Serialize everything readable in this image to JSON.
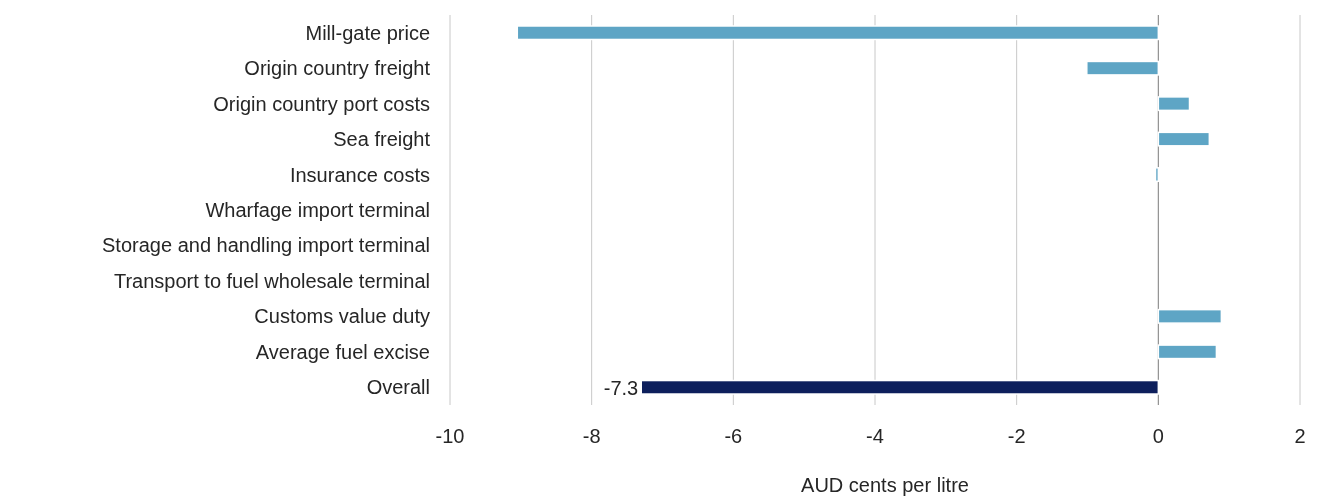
{
  "chart_data": {
    "type": "bar",
    "orientation": "horizontal",
    "xlabel": "AUD cents per litre",
    "categories": [
      "Mill-gate price",
      "Origin country freight",
      "Origin country port costs",
      "Sea freight",
      "Insurance costs",
      "Wharfage import terminal",
      "Storage and handling import terminal",
      "Transport to fuel wholesale terminal",
      "Customs value duty",
      "Average fuel excise",
      "Overall"
    ],
    "values": [
      -9.05,
      -1.01,
      0.44,
      0.72,
      -0.04,
      0,
      0,
      0,
      0.89,
      0.82,
      -7.3
    ],
    "colors": [
      "#5ea5c5",
      "#5ea5c5",
      "#5ea5c5",
      "#5ea5c5",
      "#5ea5c5",
      "#5ea5c5",
      "#5ea5c5",
      "#5ea5c5",
      "#5ea5c5",
      "#5ea5c5",
      "#0d1f5c"
    ],
    "value_labels": [
      null,
      null,
      null,
      null,
      null,
      null,
      null,
      null,
      null,
      null,
      "-7.3"
    ],
    "xlim": [
      -10,
      2
    ],
    "xticks": [
      -10,
      -8,
      -6,
      -4,
      -2,
      0,
      2
    ],
    "grid": "x"
  }
}
